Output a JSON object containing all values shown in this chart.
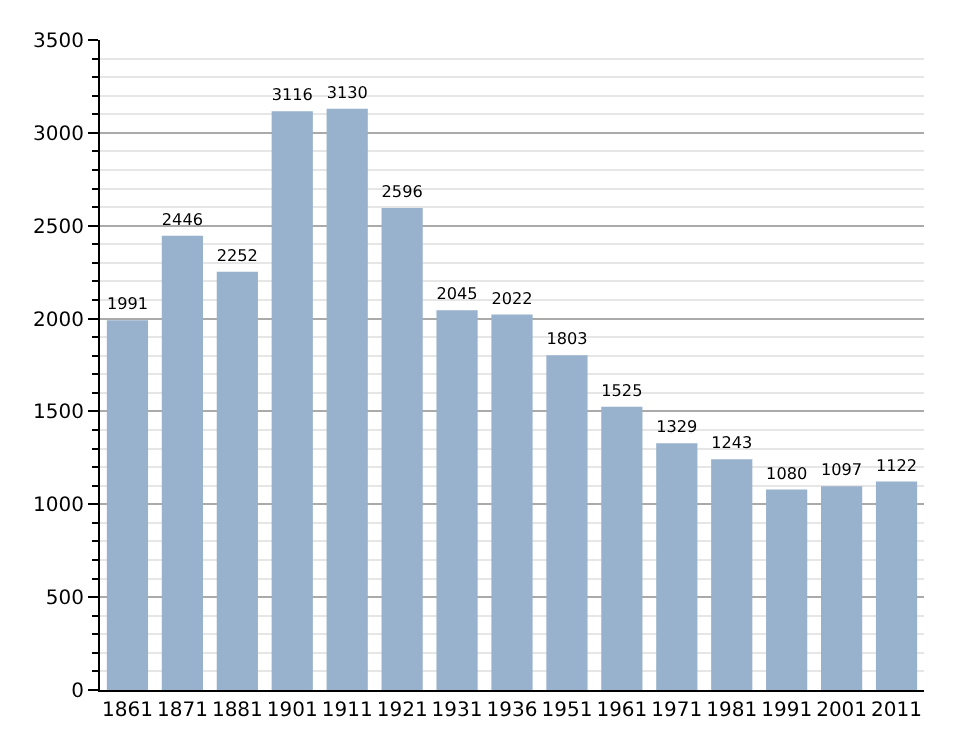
{
  "chart_data": {
    "type": "bar",
    "categories": [
      "1861",
      "1871",
      "1881",
      "1901",
      "1911",
      "1921",
      "1931",
      "1936",
      "1951",
      "1961",
      "1971",
      "1981",
      "1991",
      "2001",
      "2011"
    ],
    "values": [
      1991,
      2446,
      2252,
      3116,
      3130,
      2596,
      2045,
      2022,
      1803,
      1525,
      1329,
      1243,
      1080,
      1097,
      1122
    ],
    "color": "#98b1cc",
    "ylim": [
      0,
      3500
    ],
    "yticks": [
      0,
      500,
      1000,
      1500,
      2000,
      2500,
      3000,
      3500
    ],
    "grid": "y",
    "data_labels": true
  }
}
